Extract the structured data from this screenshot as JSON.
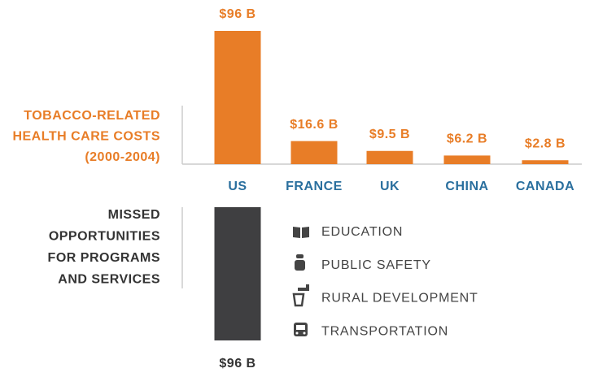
{
  "chart_data": [
    {
      "type": "bar",
      "title_lines": [
        "TOBACCO-RELATED",
        "HEALTH CARE COSTS",
        "(2000-2004)"
      ],
      "categories": [
        "US",
        "FRANCE",
        "UK",
        "CHINA",
        "CANADA"
      ],
      "values": [
        96,
        16.6,
        9.5,
        6.2,
        2.8
      ],
      "value_labels": [
        "$96 B",
        "$16.6 B",
        "$9.5 B",
        "$6.2 B",
        "$2.8 B"
      ],
      "color": "#e87d27"
    },
    {
      "type": "bar",
      "title_lines": [
        "MISSED",
        "OPPORTUNITIES",
        "FOR PROGRAMS",
        "AND SERVICES"
      ],
      "values": [
        96
      ],
      "value_labels": [
        "$96 B"
      ],
      "color": "#3f3f41",
      "items": [
        "EDUCATION",
        "PUBLIC SAFETY",
        "RURAL DEVELOPMENT",
        "TRANSPORTATION"
      ]
    }
  ]
}
